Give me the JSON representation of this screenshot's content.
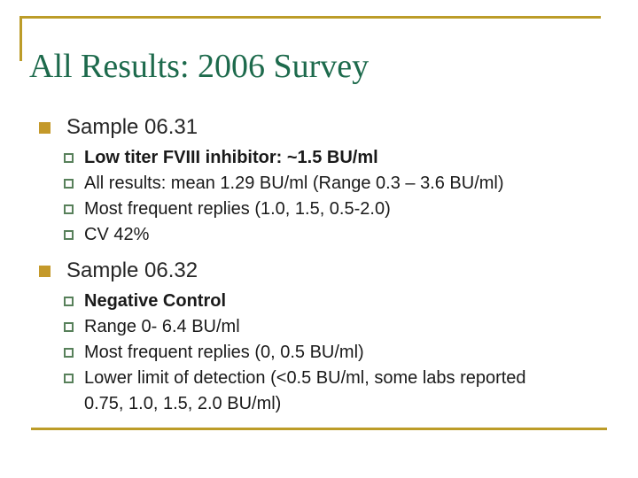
{
  "slide": {
    "title": "All Results: 2006 Survey",
    "colors": {
      "accent_gold": "#BC9C28",
      "main_bullet_gold": "#C4992A",
      "sub_bullet_green": "#57805A",
      "title_green": "#1D6A4C"
    }
  },
  "sections": [
    {
      "heading": "Sample 06.31",
      "items": [
        {
          "text": "Low titer FVIII inhibitor: ~1.5 BU/ml"
        },
        {
          "text": "All results: mean 1.29 BU/ml (Range 0.3 – 3.6 BU/ml)"
        },
        {
          "text": "Most frequent replies (1.0, 1.5, 0.5-2.0)"
        },
        {
          "text": "CV 42%"
        }
      ]
    },
    {
      "heading": "Sample 06.32",
      "items": [
        {
          "text": "Negative Control"
        },
        {
          "text": "Range 0- 6.4 BU/ml"
        },
        {
          "text": "Most frequent replies (0, 0.5 BU/ml)"
        },
        {
          "text": "Lower limit of detection (<0.5 BU/ml, some labs reported 0.75, 1.0, 1.5, 2.0 BU/ml)"
        }
      ]
    }
  ]
}
